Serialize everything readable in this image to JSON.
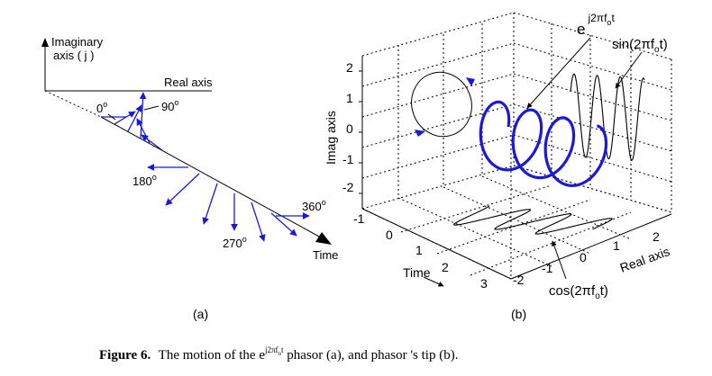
{
  "panel_a": {
    "imag_axis_label_line1": "Imaginary",
    "imag_axis_label_line2": "axis ( j )",
    "real_axis_label": "Real axis",
    "time_label": "Time",
    "angles": [
      {
        "base": "0",
        "sup": "o"
      },
      {
        "base": "90",
        "sup": "o"
      },
      {
        "base": "180",
        "sup": "o"
      },
      {
        "base": "270",
        "sup": "o"
      },
      {
        "base": "360",
        "sup": "o"
      }
    ],
    "caption": "(a)"
  },
  "panel_b": {
    "phasor_label": {
      "base": "e",
      "sup": "j2πf",
      "sub": "o",
      "tail": "t"
    },
    "sin_label": {
      "pre": "sin(2πf",
      "sub": "o",
      "post": "t)"
    },
    "cos_label": {
      "pre": "cos(2πf",
      "sub": "o",
      "post": "t)"
    },
    "imag_axis_label": "Imag axis",
    "time_axis_label": "Time",
    "real_axis_label": "Real axis",
    "imag_ticks": [
      "2",
      "1",
      "0",
      "-1",
      "-2"
    ],
    "time_ticks": [
      "-1",
      "0",
      "1",
      "2",
      "3"
    ],
    "real_ticks": [
      "-2",
      "-1",
      "0",
      "1",
      "2"
    ],
    "caption": "(b)"
  },
  "caption": {
    "figure": "Figure 6.",
    "text_before": "The motion of the e",
    "exp_sup": "j2πf",
    "exp_sub": "o",
    "exp_tail": "t",
    "text_after": " phasor (a), and phasor 's tip (b)."
  },
  "colors": {
    "phasor": "#1a1ad6",
    "axes": "#000000"
  }
}
